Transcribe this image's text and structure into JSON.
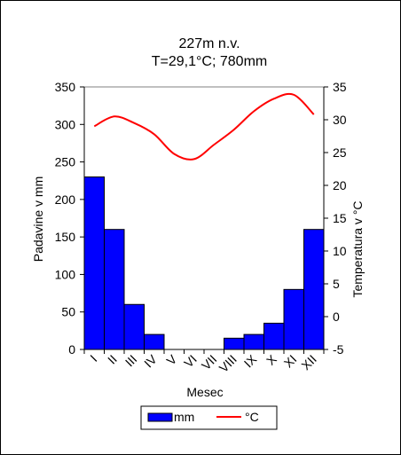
{
  "chart_data": {
    "type": "bar+line",
    "title_line1": "227m n.v.",
    "title_line2": "T=29,1°C; 780mm",
    "xlabel": "Mesec",
    "ylabel_left": "Padavine v mm",
    "ylabel_right": "Temperatura v °C",
    "categories": [
      "I",
      "II",
      "III",
      "IV",
      "V",
      "VI",
      "VII",
      "VIII",
      "IX",
      "X",
      "XI",
      "XII"
    ],
    "y_left": {
      "min": 0,
      "max": 350,
      "step": 50,
      "ticks": [
        "0",
        "50",
        "100",
        "150",
        "200",
        "250",
        "300",
        "350"
      ]
    },
    "y_right": {
      "min": -5,
      "max": 35,
      "step": 5,
      "ticks": [
        "-5",
        "0",
        "5",
        "10",
        "15",
        "20",
        "25",
        "30",
        "35"
      ]
    },
    "series": [
      {
        "name": "mm",
        "type": "bar",
        "axis": "left",
        "color": "#0000ff",
        "values": [
          230,
          160,
          60,
          20,
          0,
          0,
          0,
          15,
          20,
          35,
          80,
          160
        ]
      },
      {
        "name": "°C",
        "type": "line",
        "axis": "right",
        "color": "#ff0000",
        "values": [
          29,
          30.5,
          29.5,
          27.8,
          24.8,
          24,
          26.2,
          28.5,
          31.3,
          33.2,
          33.8,
          30.8
        ]
      }
    ],
    "legend": {
      "position": "bottom",
      "items": [
        "mm",
        "°C"
      ]
    },
    "grid": false
  }
}
